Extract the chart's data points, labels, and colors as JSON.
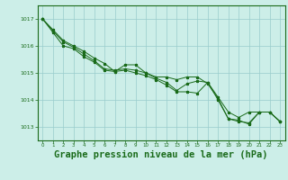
{
  "background_color": "#cceee8",
  "grid_color": "#99cccc",
  "line_color": "#1a6b1a",
  "marker_color": "#1a6b1a",
  "xlabel": "Graphe pression niveau de la mer (hPa)",
  "xlabel_fontsize": 7.5,
  "xlim": [
    -0.5,
    23.5
  ],
  "ylim": [
    1012.5,
    1017.5
  ],
  "yticks": [
    1013,
    1014,
    1015,
    1016,
    1017
  ],
  "xticks": [
    0,
    1,
    2,
    3,
    4,
    5,
    6,
    7,
    8,
    9,
    10,
    11,
    12,
    13,
    14,
    15,
    16,
    17,
    18,
    19,
    20,
    21,
    22,
    23
  ],
  "line1": [
    1017.0,
    1016.6,
    1016.2,
    1016.0,
    1015.8,
    1015.55,
    1015.35,
    1015.05,
    1015.3,
    1015.3,
    1015.0,
    1014.85,
    1014.85,
    1014.75,
    1014.85,
    1014.85,
    1014.6,
    1014.05,
    1013.3,
    1013.25,
    1013.1,
    1013.55,
    1013.55,
    1013.2
  ],
  "line2": [
    1017.0,
    1016.55,
    1016.15,
    1015.95,
    1015.7,
    1015.45,
    1015.15,
    1015.1,
    1015.15,
    1015.1,
    1015.0,
    1014.8,
    1014.65,
    1014.35,
    1014.6,
    1014.7,
    1014.65,
    1014.1,
    1013.55,
    1013.35,
    1013.55,
    1013.55,
    1013.55,
    1013.2
  ],
  "line3": [
    1017.0,
    1016.5,
    1016.0,
    1015.9,
    1015.6,
    1015.4,
    1015.1,
    1015.05,
    1015.1,
    1015.0,
    1014.9,
    1014.75,
    1014.55,
    1014.3,
    1014.3,
    1014.25,
    1014.65,
    1014.0,
    1013.3,
    1013.2,
    1013.15,
    1013.55,
    1013.55,
    1013.2
  ]
}
